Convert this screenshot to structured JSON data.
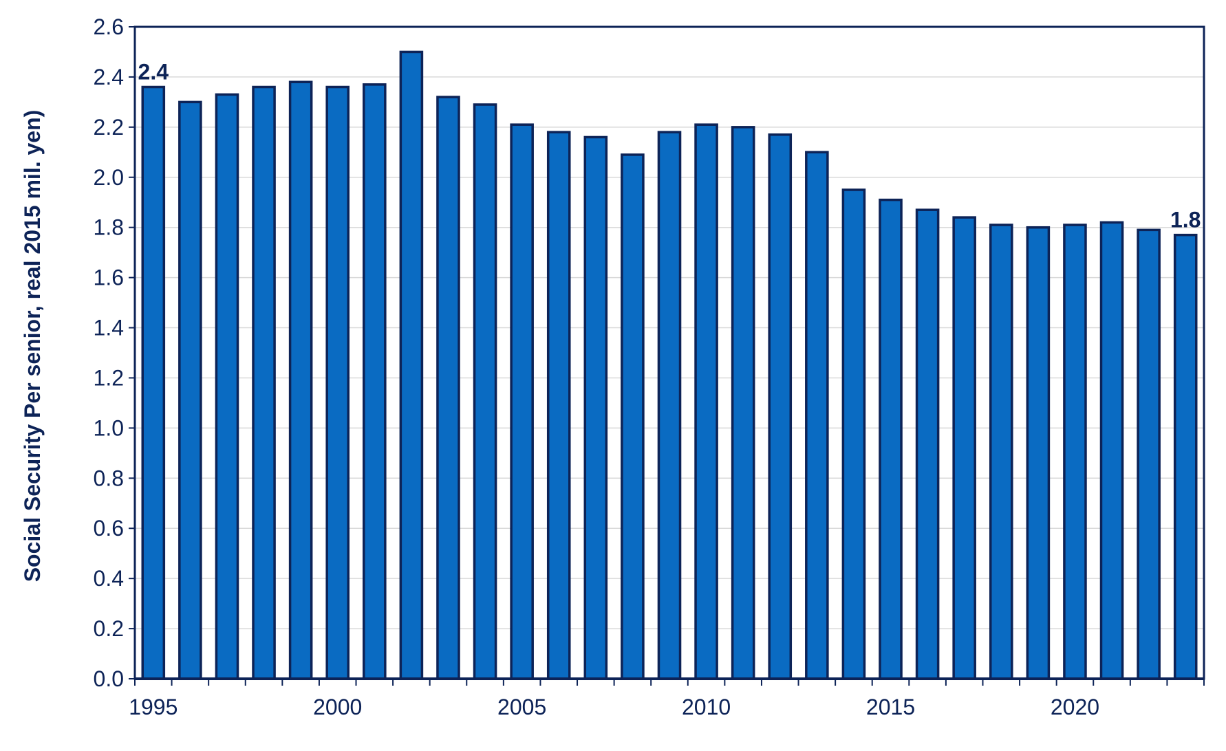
{
  "chart_data": {
    "type": "bar",
    "title": "",
    "xlabel": "",
    "ylabel": "Social Security Per senior, real 2015 mil. yen)",
    "ylim": [
      0,
      2.6
    ],
    "y_ticks": [
      "0.0",
      "0.2",
      "0.4",
      "0.6",
      "0.8",
      "1.0",
      "1.2",
      "1.4",
      "1.6",
      "1.8",
      "2.0",
      "2.2",
      "2.4",
      "2.6"
    ],
    "x_tick_labels": [
      "1995",
      "2000",
      "2005",
      "2010",
      "2015",
      "2020"
    ],
    "categories": [
      "1995",
      "1996",
      "1997",
      "1998",
      "1999",
      "2000",
      "2001",
      "2002",
      "2003",
      "2004",
      "2005",
      "2006",
      "2007",
      "2008",
      "2009",
      "2010",
      "2011",
      "2012",
      "2013",
      "2014",
      "2015",
      "2016",
      "2017",
      "2018",
      "2019",
      "2020",
      "2021",
      "2022",
      "2023"
    ],
    "values": [
      2.36,
      2.3,
      2.33,
      2.36,
      2.38,
      2.36,
      2.37,
      2.5,
      2.32,
      2.29,
      2.21,
      2.18,
      2.16,
      2.09,
      2.18,
      2.21,
      2.2,
      2.17,
      2.1,
      1.95,
      1.91,
      1.87,
      1.84,
      1.81,
      1.8,
      1.81,
      1.82,
      1.79,
      1.77
    ],
    "data_labels": [
      {
        "category": "1995",
        "text": "2.4"
      },
      {
        "category": "2023",
        "text": "1.8"
      }
    ],
    "grid": true,
    "legend": "none",
    "colors": {
      "bar_fill": "#0A6BC2",
      "bar_edge": "#0D2357",
      "axis": "#0D2357",
      "text": "#0D2357",
      "grid": "#D9D9D9"
    }
  }
}
